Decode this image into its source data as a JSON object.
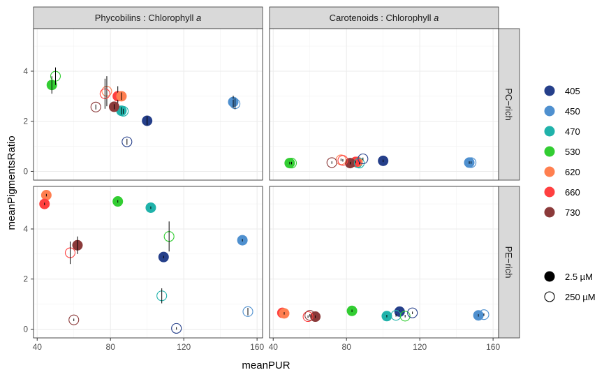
{
  "chart_data": {
    "type": "scatter",
    "xlabel": "meanPUR",
    "ylabel": "meanPigmentsRatio",
    "x_ticks": [
      40,
      80,
      120,
      160
    ],
    "y_ticks": [
      0,
      2,
      4
    ],
    "xlim": [
      38,
      163
    ],
    "ylim": [
      -0.35,
      5.7
    ],
    "grid": true,
    "facet_cols": [
      {
        "label_plain": "Phycobilins : Chlorophyll ",
        "label_italic": "a"
      },
      {
        "label_plain": "Carotenoids : Chlorophyll ",
        "label_italic": "a"
      }
    ],
    "facet_rows": [
      "PC−rich",
      "PE−rich"
    ],
    "legend_colour": [
      {
        "label": "405",
        "color": "#253f8a"
      },
      {
        "label": "450",
        "color": "#4f90cf"
      },
      {
        "label": "470",
        "color": "#20b2aa"
      },
      {
        "label": "530",
        "color": "#32cd32"
      },
      {
        "label": "620",
        "color": "#ff7f50"
      },
      {
        "label": "660",
        "color": "#ff4040"
      },
      {
        "label": "730",
        "color": "#8b3a3a"
      }
    ],
    "legend_shape": [
      {
        "label": "2.5 µM",
        "fill": "filled"
      },
      {
        "label": "250 µM",
        "fill": "open"
      }
    ],
    "panels": [
      {
        "col": 0,
        "row": 0,
        "points": [
          {
            "wl": "405",
            "light": "2.5",
            "x": 100,
            "y": 2.02,
            "err": 0.18
          },
          {
            "wl": "450",
            "light": "2.5",
            "x": 147,
            "y": 2.77,
            "err": 0.25
          },
          {
            "wl": "450",
            "light": "250",
            "x": 148,
            "y": 2.7,
            "err": 0.22
          },
          {
            "wl": "470",
            "light": "2.5",
            "x": 86,
            "y": 2.42,
            "err": 0.15
          },
          {
            "wl": "470",
            "light": "250",
            "x": 87,
            "y": 2.4,
            "err": 0.1
          },
          {
            "wl": "530",
            "light": "2.5",
            "x": 48,
            "y": 3.45,
            "err": 0.35
          },
          {
            "wl": "530",
            "light": "250",
            "x": 50,
            "y": 3.8,
            "err": 0.35
          },
          {
            "wl": "405",
            "light": "250",
            "x": 89,
            "y": 1.18,
            "err": 0.12
          },
          {
            "wl": "620",
            "light": "250",
            "x": 78,
            "y": 3.2,
            "err": 0.6
          },
          {
            "wl": "660",
            "light": "2.5",
            "x": 84,
            "y": 3.0,
            "err": 0.4
          },
          {
            "wl": "620",
            "light": "2.5",
            "x": 86,
            "y": 3.0,
            "err": 0.15
          },
          {
            "wl": "660",
            "light": "250",
            "x": 77,
            "y": 3.1,
            "err": 0.6
          },
          {
            "wl": "730",
            "light": "2.5",
            "x": 82,
            "y": 2.58,
            "err": 0.1
          },
          {
            "wl": "730",
            "light": "250",
            "x": 72,
            "y": 2.57,
            "err": 0.1
          }
        ]
      },
      {
        "col": 1,
        "row": 0,
        "points": [
          {
            "wl": "405",
            "light": "2.5",
            "x": 100,
            "y": 0.42,
            "err": 0.05
          },
          {
            "wl": "450",
            "light": "2.5",
            "x": 147,
            "y": 0.35,
            "err": 0.05
          },
          {
            "wl": "450",
            "light": "250",
            "x": 148,
            "y": 0.35,
            "err": 0.05
          },
          {
            "wl": "470",
            "light": "2.5",
            "x": 86,
            "y": 0.35,
            "err": 0.05
          },
          {
            "wl": "470",
            "light": "250",
            "x": 87,
            "y": 0.33,
            "err": 0.05
          },
          {
            "wl": "530",
            "light": "2.5",
            "x": 49,
            "y": 0.33,
            "err": 0.05
          },
          {
            "wl": "530",
            "light": "250",
            "x": 50,
            "y": 0.33,
            "err": 0.05
          },
          {
            "wl": "405",
            "light": "250",
            "x": 89,
            "y": 0.5,
            "err": 0.05
          },
          {
            "wl": "620",
            "light": "2.5",
            "x": 86,
            "y": 0.38,
            "err": 0.05
          },
          {
            "wl": "660",
            "light": "2.5",
            "x": 85,
            "y": 0.38,
            "err": 0.05
          },
          {
            "wl": "620",
            "light": "250",
            "x": 77,
            "y": 0.46,
            "err": 0.05
          },
          {
            "wl": "660",
            "light": "250",
            "x": 78,
            "y": 0.44,
            "err": 0.05
          },
          {
            "wl": "730",
            "light": "2.5",
            "x": 82,
            "y": 0.33,
            "err": 0.05
          },
          {
            "wl": "730",
            "light": "250",
            "x": 72,
            "y": 0.35,
            "err": 0.05
          }
        ]
      },
      {
        "col": 0,
        "row": 1,
        "points": [
          {
            "wl": "620",
            "light": "2.5",
            "x": 45,
            "y": 5.35,
            "err": 0.05
          },
          {
            "wl": "660",
            "light": "2.5",
            "x": 44,
            "y": 5.0,
            "err": 0.05
          },
          {
            "wl": "530",
            "light": "2.5",
            "x": 84,
            "y": 5.1,
            "err": 0.05
          },
          {
            "wl": "470",
            "light": "2.5",
            "x": 102,
            "y": 4.85,
            "err": 0.05
          },
          {
            "wl": "530",
            "light": "250",
            "x": 112,
            "y": 3.7,
            "err": 0.6
          },
          {
            "wl": "450",
            "light": "2.5",
            "x": 152,
            "y": 3.55,
            "err": 0.05
          },
          {
            "wl": "660",
            "light": "250",
            "x": 58,
            "y": 3.05,
            "err": 0.45
          },
          {
            "wl": "730",
            "light": "2.5",
            "x": 62,
            "y": 3.35,
            "err": 0.35
          },
          {
            "wl": "405",
            "light": "2.5",
            "x": 109,
            "y": 2.88,
            "err": 0.05
          },
          {
            "wl": "470",
            "light": "250",
            "x": 108,
            "y": 1.33,
            "err": 0.3
          },
          {
            "wl": "730",
            "light": "250",
            "x": 60,
            "y": 0.37,
            "err": 0.05
          },
          {
            "wl": "405",
            "light": "250",
            "x": 116,
            "y": 0.03,
            "err": 0.05
          },
          {
            "wl": "450",
            "light": "250",
            "x": 155,
            "y": 0.7,
            "err": 0.15
          }
        ]
      },
      {
        "col": 1,
        "row": 1,
        "points": [
          {
            "wl": "660",
            "light": "2.5",
            "x": 45,
            "y": 0.65,
            "err": 0.05
          },
          {
            "wl": "620",
            "light": "2.5",
            "x": 46,
            "y": 0.63,
            "err": 0.05
          },
          {
            "wl": "660",
            "light": "250",
            "x": 59,
            "y": 0.5,
            "err": 0.05
          },
          {
            "wl": "730",
            "light": "250",
            "x": 60,
            "y": 0.55,
            "err": 0.05
          },
          {
            "wl": "730",
            "light": "2.5",
            "x": 63,
            "y": 0.5,
            "err": 0.05
          },
          {
            "wl": "530",
            "light": "2.5",
            "x": 83,
            "y": 0.73,
            "err": 0.05
          },
          {
            "wl": "470",
            "light": "2.5",
            "x": 102,
            "y": 0.52,
            "err": 0.05
          },
          {
            "wl": "470",
            "light": "250",
            "x": 107,
            "y": 0.55,
            "err": 0.05
          },
          {
            "wl": "405",
            "light": "2.5",
            "x": 109,
            "y": 0.7,
            "err": 0.05
          },
          {
            "wl": "530",
            "light": "250",
            "x": 112,
            "y": 0.52,
            "err": 0.05
          },
          {
            "wl": "405",
            "light": "250",
            "x": 116,
            "y": 0.65,
            "err": 0.05
          },
          {
            "wl": "450",
            "light": "2.5",
            "x": 152,
            "y": 0.55,
            "err": 0.05
          },
          {
            "wl": "450",
            "light": "250",
            "x": 155,
            "y": 0.58,
            "err": 0.05
          }
        ]
      }
    ]
  }
}
